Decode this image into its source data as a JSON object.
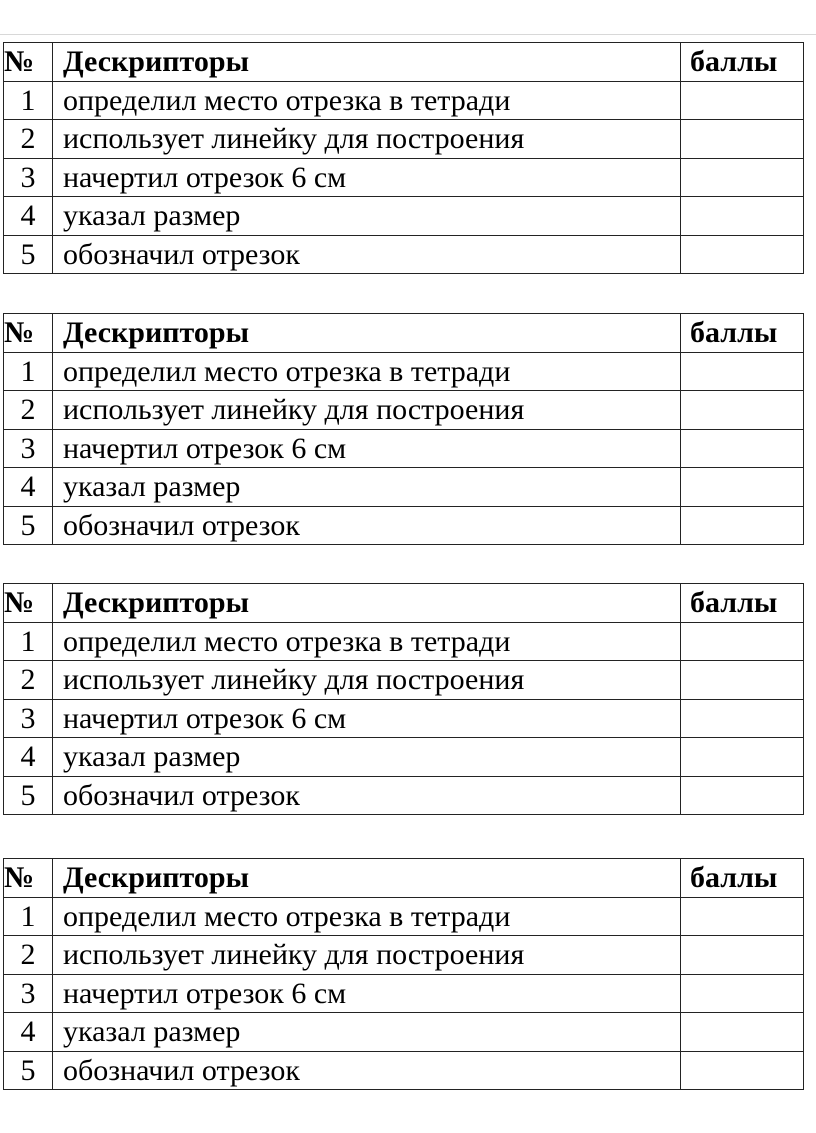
{
  "page": {
    "background": "#ffffff",
    "text_color": "#000000",
    "border_color": "#232323",
    "faint_rule_color": "#d8d8d8"
  },
  "tables": [
    {
      "headers": {
        "num": "№",
        "descriptor": "Дескрипторы",
        "score": "баллы"
      },
      "rows": [
        {
          "num": "1",
          "descriptor": "определил место отрезка в тетради",
          "score": ""
        },
        {
          "num": "2",
          "descriptor": "использует линейку для построения",
          "score": ""
        },
        {
          "num": "3",
          "descriptor": "начертил отрезок 6 см",
          "score": ""
        },
        {
          "num": "4",
          "descriptor": "указал размер",
          "score": ""
        },
        {
          "num": "5",
          "descriptor": "обозначил отрезок",
          "score": ""
        }
      ]
    },
    {
      "headers": {
        "num": "№",
        "descriptor": "Дескрипторы",
        "score": "баллы"
      },
      "rows": [
        {
          "num": "1",
          "descriptor": "определил место отрезка в тетради",
          "score": ""
        },
        {
          "num": "2",
          "descriptor": "использует линейку для построения",
          "score": ""
        },
        {
          "num": "3",
          "descriptor": "начертил отрезок 6 см",
          "score": ""
        },
        {
          "num": "4",
          "descriptor": "указал размер",
          "score": ""
        },
        {
          "num": "5",
          "descriptor": "обозначил отрезок",
          "score": ""
        }
      ]
    },
    {
      "headers": {
        "num": "№",
        "descriptor": "Дескрипторы",
        "score": "баллы"
      },
      "rows": [
        {
          "num": "1",
          "descriptor": "определил место отрезка в тетради",
          "score": ""
        },
        {
          "num": "2",
          "descriptor": "использует линейку для построения",
          "score": ""
        },
        {
          "num": "3",
          "descriptor": "начертил отрезок 6 см",
          "score": ""
        },
        {
          "num": "4",
          "descriptor": "указал размер",
          "score": ""
        },
        {
          "num": "5",
          "descriptor": "обозначил отрезок",
          "score": ""
        }
      ]
    },
    {
      "headers": {
        "num": "№",
        "descriptor": "Дескрипторы",
        "score": "баллы"
      },
      "rows": [
        {
          "num": "1",
          "descriptor": "определил место отрезка в тетради",
          "score": ""
        },
        {
          "num": "2",
          "descriptor": "использует линейку для построения",
          "score": ""
        },
        {
          "num": "3",
          "descriptor": "начертил отрезок 6 см",
          "score": ""
        },
        {
          "num": "4",
          "descriptor": "указал размер",
          "score": ""
        },
        {
          "num": "5",
          "descriptor": "обозначил отрезок",
          "score": ""
        }
      ]
    }
  ]
}
